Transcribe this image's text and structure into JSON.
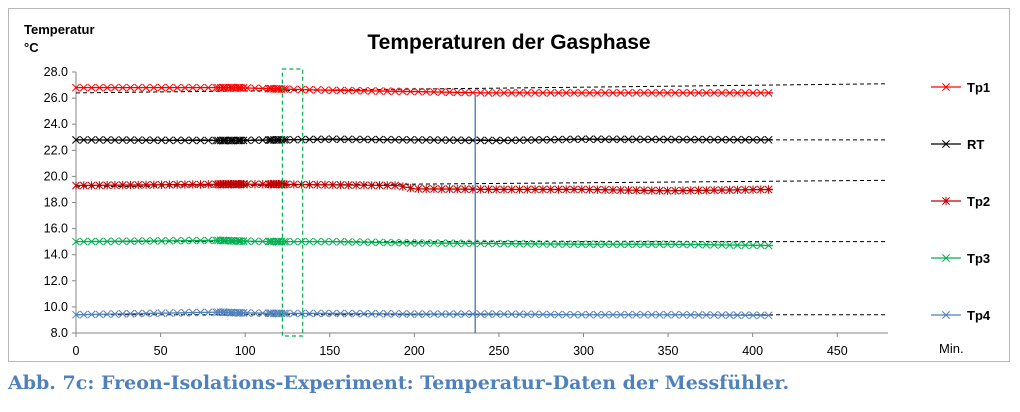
{
  "chart_data": {
    "type": "line",
    "title": "Temperaturen der Gasphase",
    "ylabel_line1": "Temperatur",
    "ylabel_line2": "°C",
    "xlabel": "Min.",
    "xlim": [
      0,
      480
    ],
    "ylim": [
      8.0,
      28.0
    ],
    "xticks": [
      0,
      50,
      100,
      150,
      200,
      250,
      300,
      350,
      400,
      450
    ],
    "yticks": [
      "28.0",
      "26.0",
      "24.0",
      "22.0",
      "20.0",
      "18.0",
      "16.0",
      "14.0",
      "12.0",
      "10.0",
      "8.0"
    ],
    "grid": false,
    "legend_position": "right",
    "series": [
      {
        "name": "Tp1",
        "color": "#ff0000",
        "marker": "x",
        "x": [
          0,
          85,
          95,
          120,
          150,
          200,
          240,
          300,
          412
        ],
        "y": [
          26.8,
          26.8,
          26.8,
          26.7,
          26.6,
          26.5,
          26.4,
          26.4,
          26.4
        ],
        "trend": {
          "x": [
            0,
            480
          ],
          "y": [
            26.4,
            27.1
          ]
        }
      },
      {
        "name": "RT",
        "color": "#000000",
        "marker": "x",
        "x": [
          0,
          85,
          95,
          120,
          150,
          200,
          250,
          300,
          412
        ],
        "y": [
          22.8,
          22.75,
          22.75,
          22.8,
          22.85,
          22.8,
          22.75,
          22.85,
          22.8
        ],
        "trend": {
          "x": [
            0,
            480
          ],
          "y": [
            22.8,
            22.8
          ]
        }
      },
      {
        "name": "Tp2",
        "color": "#c00000",
        "marker": "*",
        "x": [
          0,
          85,
          95,
          120,
          150,
          190,
          200,
          250,
          300,
          350,
          412
        ],
        "y": [
          19.3,
          19.4,
          19.4,
          19.4,
          19.35,
          19.3,
          19.05,
          19.0,
          19.0,
          18.9,
          19.0
        ],
        "trend": {
          "x": [
            0,
            480
          ],
          "y": [
            19.2,
            19.7
          ]
        }
      },
      {
        "name": "Tp3",
        "color": "#00b050",
        "marker": "x",
        "x": [
          0,
          85,
          95,
          120,
          150,
          200,
          250,
          300,
          350,
          412
        ],
        "y": [
          15.0,
          15.1,
          15.05,
          15.0,
          15.0,
          14.9,
          14.85,
          14.8,
          14.8,
          14.7
        ],
        "trend": {
          "x": [
            0,
            480
          ],
          "y": [
            15.0,
            15.0
          ]
        }
      },
      {
        "name": "Tp4",
        "color": "#4f81bd",
        "marker": "x",
        "x": [
          0,
          85,
          95,
          120,
          150,
          200,
          250,
          300,
          350,
          412
        ],
        "y": [
          9.4,
          9.6,
          9.55,
          9.5,
          9.5,
          9.45,
          9.45,
          9.4,
          9.4,
          9.35
        ],
        "trend": {
          "x": [
            0,
            480
          ],
          "y": [
            9.4,
            9.4
          ]
        }
      }
    ],
    "annotations": {
      "dashed_box": {
        "x": [
          122,
          134
        ],
        "y": [
          8.0,
          28.0
        ],
        "color": "#00b050"
      },
      "vertical_line": {
        "x": 236,
        "y": [
          8.0,
          26.3
        ],
        "color": "#4f81bd"
      }
    }
  },
  "caption": "Abb. 7c: Freon-Isolations-Experiment: Temperatur-Daten der Messfühler."
}
